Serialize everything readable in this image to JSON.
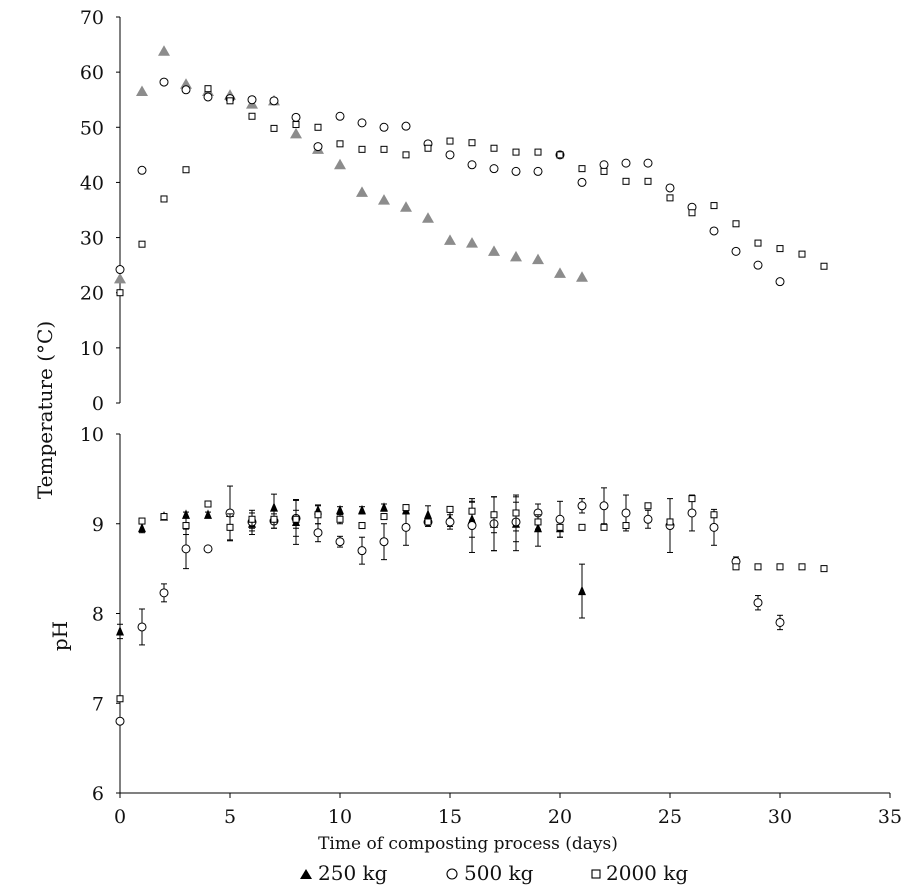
{
  "chart_data": [
    {
      "type": "scatter",
      "panel": "temperature",
      "ylabel": "Temperature (°C)",
      "ylim": [
        0,
        70
      ],
      "yticks": [
        0,
        10,
        20,
        30,
        40,
        50,
        60,
        70
      ],
      "xlim": [
        0,
        35
      ],
      "series": [
        {
          "name": "250 kg",
          "marker": "triangle",
          "color": "#8c8c8c",
          "points": [
            [
              0,
              22.5
            ],
            [
              1,
              56.5
            ],
            [
              2,
              63.8
            ],
            [
              3,
              57.8
            ],
            [
              4,
              56.5
            ],
            [
              5,
              55.8
            ],
            [
              6,
              54.2
            ],
            [
              7,
              54.8
            ],
            [
              8,
              48.8
            ],
            [
              9,
              46
            ],
            [
              10,
              43.2
            ],
            [
              11,
              38.2
            ],
            [
              12,
              36.8
            ],
            [
              13,
              35.5
            ],
            [
              14,
              33.5
            ],
            [
              15,
              29.5
            ],
            [
              16,
              29
            ],
            [
              17,
              27.5
            ],
            [
              18,
              26.5
            ],
            [
              19,
              26
            ],
            [
              20,
              23.5
            ],
            [
              21,
              22.8
            ]
          ]
        },
        {
          "name": "500 kg",
          "marker": "circle",
          "color": "#000000",
          "points": [
            [
              0,
              24.2
            ],
            [
              1,
              42.2
            ],
            [
              2,
              58.2
            ],
            [
              3,
              56.8
            ],
            [
              4,
              55.5
            ],
            [
              5,
              55.2
            ],
            [
              6,
              55
            ],
            [
              7,
              54.8
            ],
            [
              8,
              51.8
            ],
            [
              9,
              46.5
            ],
            [
              10,
              52
            ],
            [
              11,
              50.8
            ],
            [
              12,
              50
            ],
            [
              13,
              50.2
            ],
            [
              14,
              47
            ],
            [
              15,
              45
            ],
            [
              16,
              43.2
            ],
            [
              17,
              42.5
            ],
            [
              18,
              42
            ],
            [
              19,
              42
            ],
            [
              20,
              45
            ],
            [
              21,
              40
            ],
            [
              22,
              43.2
            ],
            [
              23,
              43.5
            ],
            [
              24,
              43.5
            ],
            [
              25,
              39
            ],
            [
              26,
              35.5
            ],
            [
              27,
              31.2
            ],
            [
              28,
              27.5
            ],
            [
              29,
              25
            ],
            [
              30,
              22
            ]
          ]
        },
        {
          "name": "2000 kg",
          "marker": "square",
          "color": "#000000",
          "points": [
            [
              0,
              20
            ],
            [
              1,
              28.8
            ],
            [
              2,
              37
            ],
            [
              3,
              42.3
            ],
            [
              4,
              57
            ],
            [
              5,
              54.8
            ],
            [
              6,
              52
            ],
            [
              7,
              49.8
            ],
            [
              8,
              50.5
            ],
            [
              9,
              50
            ],
            [
              10,
              47
            ],
            [
              11,
              46
            ],
            [
              12,
              46
            ],
            [
              13,
              45
            ],
            [
              14,
              46.2
            ],
            [
              15,
              47.5
            ],
            [
              16,
              47.2
            ],
            [
              17,
              46.2
            ],
            [
              18,
              45.5
            ],
            [
              19,
              45.5
            ],
            [
              20,
              45
            ],
            [
              21,
              42.5
            ],
            [
              22,
              42
            ],
            [
              23,
              40.2
            ],
            [
              24,
              40.2
            ],
            [
              25,
              37.2
            ],
            [
              26,
              34.5
            ],
            [
              27,
              35.8
            ],
            [
              28,
              32.5
            ],
            [
              29,
              29
            ],
            [
              30,
              28
            ],
            [
              31,
              27
            ],
            [
              32,
              24.8
            ]
          ]
        }
      ]
    },
    {
      "type": "scatter",
      "panel": "pH",
      "ylabel": "pH",
      "ylim": [
        6,
        10
      ],
      "yticks": [
        6,
        7,
        8,
        9,
        10
      ],
      "xlim": [
        0,
        35
      ],
      "xticks": [
        0,
        5,
        10,
        15,
        20,
        25,
        30,
        35
      ],
      "xlabel": "Time of composting process (days)",
      "series": [
        {
          "name": "250 kg",
          "marker": "triangle",
          "color": "#000000",
          "points": [
            [
              0,
              7.8,
              0.08
            ],
            [
              1,
              8.95,
              0.05
            ],
            [
              2,
              9.08,
              0.03
            ],
            [
              3,
              9.1,
              0.03
            ],
            [
              4,
              9.1,
              0.03
            ],
            [
              5,
              9.12,
              0.3
            ],
            [
              6,
              9.0,
              0.12
            ],
            [
              7,
              9.18,
              0.15
            ],
            [
              8,
              9.02,
              0.25
            ],
            [
              9,
              9.15,
              0.06
            ],
            [
              10,
              9.15,
              0.04
            ],
            [
              11,
              9.15,
              0.04
            ],
            [
              12,
              9.18,
              0.04
            ],
            [
              13,
              9.15,
              0.04
            ],
            [
              14,
              9.1,
              0.1
            ],
            [
              15,
              9.05,
              0.08
            ],
            [
              16,
              9.05,
              0.2
            ],
            [
              17,
              9.0,
              0.3
            ],
            [
              18,
              9.0,
              0.3
            ],
            [
              19,
              8.95,
              0.2
            ],
            [
              20,
              8.95,
              0.1
            ],
            [
              21,
              8.25,
              0.3
            ]
          ]
        },
        {
          "name": "500 kg",
          "marker": "circle",
          "color": "#000000",
          "points": [
            [
              0,
              6.8,
              0.03
            ],
            [
              1,
              7.85,
              0.2
            ],
            [
              2,
              8.23,
              0.1
            ],
            [
              3,
              8.72,
              0.22
            ],
            [
              4,
              8.72,
              0.02
            ],
            [
              5,
              9.12,
              0.03
            ],
            [
              6,
              9.02,
              0.1
            ],
            [
              7,
              9.03,
              0.08
            ],
            [
              8,
              9.06,
              0.2
            ],
            [
              9,
              8.9,
              0.1
            ],
            [
              10,
              8.8,
              0.06
            ],
            [
              11,
              8.7,
              0.15
            ],
            [
              12,
              8.8,
              0.2
            ],
            [
              13,
              8.96,
              0.2
            ],
            [
              14,
              9.02,
              0.05
            ],
            [
              15,
              9.02,
              0.08
            ],
            [
              16,
              8.98,
              0.3
            ],
            [
              17,
              9.0,
              0.3
            ],
            [
              18,
              9.02,
              0.22
            ],
            [
              19,
              9.12,
              0.1
            ],
            [
              20,
              9.05,
              0.2
            ],
            [
              21,
              9.2,
              0.08
            ],
            [
              22,
              9.2,
              0.2
            ],
            [
              23,
              9.12,
              0.2
            ],
            [
              24,
              9.05,
              0.1
            ],
            [
              25,
              8.98,
              0.3
            ],
            [
              26,
              9.12,
              0.2
            ],
            [
              27,
              8.96,
              0.2
            ],
            [
              28,
              8.58,
              0.05
            ],
            [
              29,
              8.12,
              0.08
            ],
            [
              30,
              7.9,
              0.08
            ]
          ]
        },
        {
          "name": "2000 kg",
          "marker": "square",
          "color": "#000000",
          "points": [
            [
              0,
              7.05,
              0.03
            ],
            [
              1,
              9.03,
              0.03
            ],
            [
              2,
              9.08,
              0.03
            ],
            [
              3,
              8.98,
              0.1
            ],
            [
              4,
              9.22,
              0.03
            ],
            [
              5,
              8.96,
              0.15
            ],
            [
              6,
              9.05,
              0.1
            ],
            [
              7,
              9.05,
              0.1
            ],
            [
              8,
              9.05,
              0.1
            ],
            [
              9,
              9.1,
              0.1
            ],
            [
              10,
              9.05,
              0.05
            ],
            [
              11,
              8.98,
              0.03
            ],
            [
              12,
              9.08,
              0.03
            ],
            [
              13,
              9.18,
              0.03
            ],
            [
              14,
              9.02,
              0.03
            ],
            [
              15,
              9.16,
              0.03
            ],
            [
              16,
              9.14,
              0.1
            ],
            [
              17,
              9.1,
              0.2
            ],
            [
              18,
              9.12,
              0.2
            ],
            [
              19,
              9.02,
              0.08
            ],
            [
              20,
              8.96,
              0.03
            ],
            [
              21,
              8.96,
              0.03
            ],
            [
              22,
              8.96,
              0.03
            ],
            [
              23,
              8.98,
              0.03
            ],
            [
              24,
              9.2,
              0.03
            ],
            [
              25,
              9.02,
              0.03
            ],
            [
              26,
              9.28,
              0.03
            ],
            [
              27,
              9.1,
              0.03
            ],
            [
              28,
              8.52,
              0.03
            ],
            [
              29,
              8.52,
              0.03
            ],
            [
              30,
              8.52,
              0.03
            ],
            [
              31,
              8.52,
              0.03
            ],
            [
              32,
              8.5,
              0.03
            ]
          ]
        }
      ]
    }
  ],
  "legend": {
    "items": [
      {
        "symbol": "▲",
        "label": "250 kg"
      },
      {
        "symbol": "○",
        "label": "500 kg"
      },
      {
        "symbol": "□",
        "label": "2000 kg"
      }
    ]
  }
}
